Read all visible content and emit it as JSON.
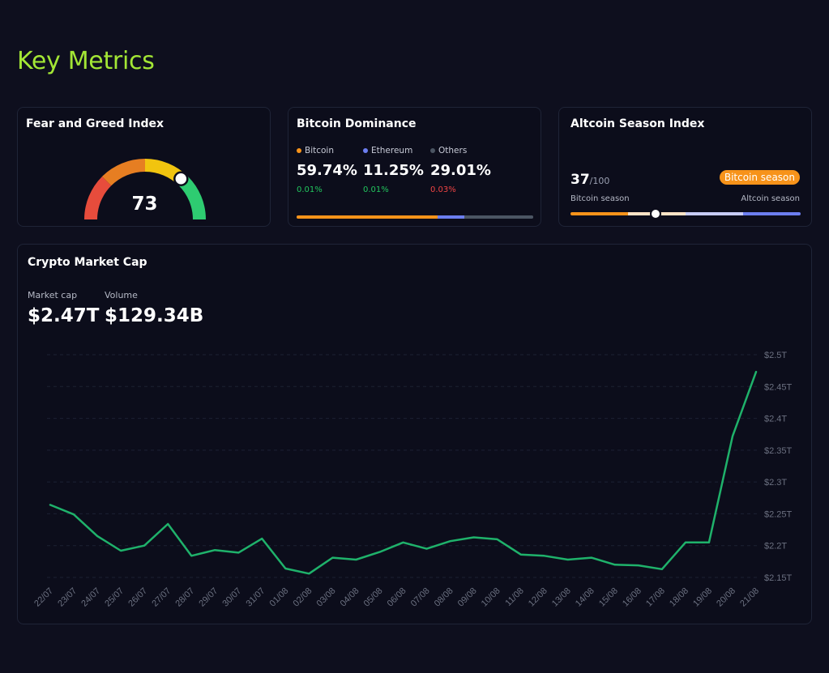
{
  "page": {
    "title": "Key Metrics"
  },
  "fear_greed": {
    "title": "Fear and Greed Index",
    "value": 73,
    "max": 100,
    "segment_colors": [
      "#e74c3c",
      "#e67e22",
      "#f1c40f",
      "#2ecc71"
    ]
  },
  "dominance": {
    "title": "Bitcoin Dominance",
    "items": [
      {
        "name": "Bitcoin",
        "percent": "59.74%",
        "change": "0.01%",
        "color": "#f7931a",
        "change_color": "#22c55e"
      },
      {
        "name": "Ethereum",
        "percent": "11.25%",
        "change": "0.01%",
        "color": "#6c7ef0",
        "change_color": "#22c55e"
      },
      {
        "name": "Others",
        "percent": "29.01%",
        "change": "0.03%",
        "color": "#4b5563",
        "change_color": "#ef4444"
      }
    ],
    "shares": [
      59.74,
      11.25,
      29.01
    ]
  },
  "altcoin": {
    "title": "Altcoin Season Index",
    "score": "37",
    "max": "/100",
    "value": 37,
    "badge": "Bitcoin season",
    "left_label": "Bitcoin season",
    "right_label": "Altcoin season",
    "track_colors": [
      "#f7931a",
      "#fde3c6",
      "#c7ccf7",
      "#6c7ef0"
    ]
  },
  "market_cap": {
    "title": "Crypto Market Cap",
    "market_cap_label": "Market cap",
    "market_cap_value": "$2.47T",
    "volume_label": "Volume",
    "volume_value": "$129.34B"
  },
  "chart_data": {
    "type": "line",
    "x": [
      "22/07",
      "23/07",
      "24/07",
      "25/07",
      "26/07",
      "27/07",
      "28/07",
      "29/07",
      "30/07",
      "31/07",
      "01/08",
      "02/08",
      "03/08",
      "04/08",
      "05/08",
      "06/08",
      "07/08",
      "08/08",
      "09/08",
      "10/08",
      "11/08",
      "12/08",
      "13/08",
      "14/08",
      "15/08",
      "16/08",
      "17/08",
      "18/08",
      "19/08",
      "20/08",
      "21/08"
    ],
    "series": [
      {
        "values": [
          2.264,
          2.249,
          2.215,
          2.192,
          2.2,
          2.234,
          2.184,
          2.193,
          2.189,
          2.211,
          2.164,
          2.156,
          2.181,
          2.178,
          2.19,
          2.205,
          2.195,
          2.207,
          2.213,
          2.21,
          2.186,
          2.184,
          2.178,
          2.181,
          2.17,
          2.169,
          2.163,
          2.205,
          2.205,
          2.372,
          2.473
        ]
      }
    ],
    "ylim": [
      2.15,
      2.5
    ],
    "yticks": [
      2.5,
      2.45,
      2.4,
      2.35,
      2.3,
      2.25,
      2.2,
      2.15
    ],
    "ytick_labels": [
      "$2.5T",
      "$2.45T",
      "$2.4T",
      "$2.35T",
      "$2.3T",
      "$2.25T",
      "$2.2T",
      "$2.15T"
    ],
    "line_color": "#1fb26b",
    "grid": true
  }
}
